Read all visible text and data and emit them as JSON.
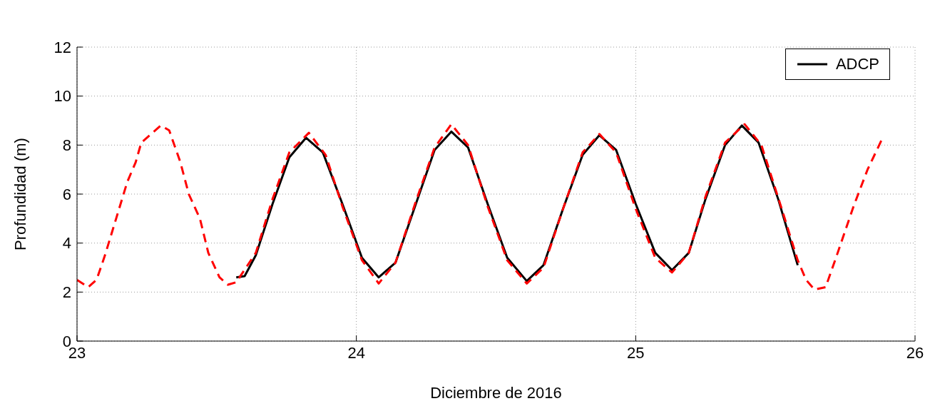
{
  "chart_data": {
    "type": "line",
    "xlabel": "Diciembre de 2016",
    "ylabel": "Profundidad (m)",
    "xlim": [
      23,
      26
    ],
    "xticks": [
      23,
      24,
      25,
      26
    ],
    "ylim": [
      0,
      12
    ],
    "yticks": [
      0,
      2,
      4,
      6,
      8,
      10,
      12
    ],
    "grid": true,
    "legend": "top right",
    "marker": "none",
    "series": [
      {
        "name": "ADCP",
        "color": "#000000",
        "line_style": "solid",
        "x": [
          23.57,
          23.6,
          23.64,
          23.7,
          23.76,
          23.82,
          23.88,
          23.95,
          24.02,
          24.08,
          24.14,
          24.21,
          24.28,
          24.34,
          24.4,
          24.47,
          24.54,
          24.61,
          24.67,
          24.74,
          24.81,
          24.87,
          24.93,
          25.0,
          25.07,
          25.13,
          25.19,
          25.25,
          25.32,
          25.38,
          25.44,
          25.51,
          25.58
        ],
        "values": [
          2.6,
          2.65,
          3.5,
          5.6,
          7.5,
          8.3,
          7.7,
          5.6,
          3.4,
          2.6,
          3.2,
          5.5,
          7.8,
          8.55,
          7.9,
          5.6,
          3.4,
          2.45,
          3.1,
          5.4,
          7.6,
          8.4,
          7.8,
          5.6,
          3.6,
          2.9,
          3.6,
          5.8,
          8.0,
          8.8,
          8.1,
          5.8,
          3.1
        ]
      },
      {
        "color": "#ff0000",
        "line_style": "dashed",
        "x": [
          23.0,
          23.04,
          23.07,
          23.1,
          23.14,
          23.18,
          23.21,
          23.23,
          23.27,
          23.3,
          23.33,
          23.37,
          23.4,
          23.44,
          23.47,
          23.51,
          23.54,
          23.57,
          23.64,
          23.7,
          23.76,
          23.83,
          23.89,
          23.95,
          24.02,
          24.08,
          24.14,
          24.21,
          24.28,
          24.34,
          24.4,
          24.47,
          24.54,
          24.61,
          24.67,
          24.74,
          24.81,
          24.87,
          24.93,
          25.0,
          25.07,
          25.13,
          25.19,
          25.25,
          25.32,
          25.39,
          25.45,
          25.52,
          25.58,
          25.61,
          25.64,
          25.68,
          25.72,
          25.78,
          25.83,
          25.88
        ],
        "values": [
          2.5,
          2.2,
          2.5,
          3.5,
          5.0,
          6.5,
          7.3,
          8.1,
          8.5,
          8.8,
          8.6,
          7.3,
          6.0,
          5.0,
          3.6,
          2.6,
          2.3,
          2.4,
          3.6,
          5.8,
          7.7,
          8.5,
          7.6,
          5.5,
          3.3,
          2.35,
          3.2,
          5.6,
          7.9,
          8.85,
          8.0,
          5.5,
          3.3,
          2.35,
          3.0,
          5.4,
          7.7,
          8.45,
          7.7,
          5.4,
          3.4,
          2.8,
          3.6,
          5.9,
          8.1,
          8.85,
          8.0,
          5.5,
          3.3,
          2.5,
          2.1,
          2.2,
          3.5,
          5.5,
          7.0,
          8.2
        ]
      }
    ]
  }
}
